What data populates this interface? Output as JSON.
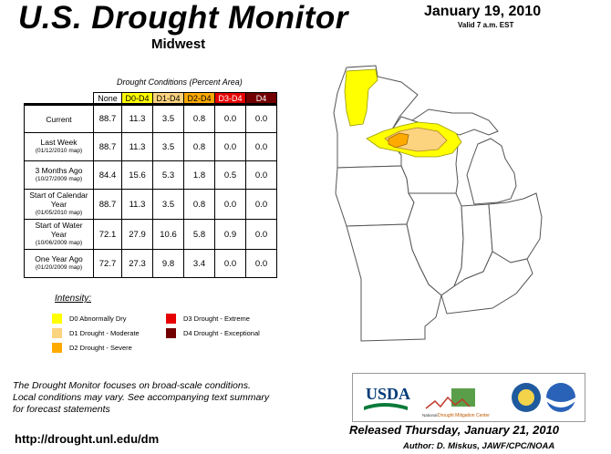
{
  "header": {
    "title": "U.S. Drought Monitor",
    "region": "Midwest",
    "date": "January 19, 2010",
    "valid": "Valid 7 a.m. EST"
  },
  "table": {
    "caption": "Drought Conditions (Percent Area)",
    "columns": [
      {
        "label": "None",
        "color": "#ffffff",
        "text_color": "#000000"
      },
      {
        "label": "D0-D4",
        "color": "#ffff00",
        "text_color": "#000000"
      },
      {
        "label": "D1-D4",
        "color": "#fcd37f",
        "text_color": "#000000"
      },
      {
        "label": "D2-D4",
        "color": "#ffaa00",
        "text_color": "#000000"
      },
      {
        "label": "D3-D4",
        "color": "#e60000",
        "text_color": "#ffffff"
      },
      {
        "label": "D4",
        "color": "#730000",
        "text_color": "#ffffff"
      }
    ],
    "rows": [
      {
        "label": "Current",
        "sub": "",
        "values": [
          "88.7",
          "11.3",
          "3.5",
          "0.8",
          "0.0",
          "0.0"
        ]
      },
      {
        "label": "Last Week",
        "sub": "(01/12/2010 map)",
        "values": [
          "88.7",
          "11.3",
          "3.5",
          "0.8",
          "0.0",
          "0.0"
        ]
      },
      {
        "label": "3 Months Ago",
        "sub": "(10/27/2009 map)",
        "values": [
          "84.4",
          "15.6",
          "5.3",
          "1.8",
          "0.5",
          "0.0"
        ]
      },
      {
        "label": "Start of Calendar Year",
        "sub": "(01/05/2010 map)",
        "values": [
          "88.7",
          "11.3",
          "3.5",
          "0.8",
          "0.0",
          "0.0"
        ]
      },
      {
        "label": "Start of Water Year",
        "sub": "(10/06/2009 map)",
        "values": [
          "72.1",
          "27.9",
          "10.6",
          "5.8",
          "0.9",
          "0.0"
        ]
      },
      {
        "label": "One Year Ago",
        "sub": "(01/20/2009 map)",
        "values": [
          "72.7",
          "27.3",
          "9.8",
          "3.4",
          "0.0",
          "0.0"
        ]
      }
    ]
  },
  "legend": {
    "title": "Intensity:",
    "items": [
      {
        "label": "D0 Abnormally Dry",
        "color": "#ffff00"
      },
      {
        "label": "D1 Drought - Moderate",
        "color": "#fcd37f"
      },
      {
        "label": "D2 Drought - Severe",
        "color": "#ffaa00"
      },
      {
        "label": "D3 Drought - Extreme",
        "color": "#e60000"
      },
      {
        "label": "D4 Drought - Exceptional",
        "color": "#730000"
      }
    ]
  },
  "footer": {
    "note_line1": "The Drought Monitor focuses on broad-scale conditions.",
    "note_line2": "Local conditions may vary. See accompanying text summary",
    "note_line3": "for forecast statements",
    "url": "http://drought.unl.edu/dm",
    "released": "Released Thursday, January 21, 2010",
    "author": "Author: D. Miskus, JAWF/CPC/NOAA"
  },
  "logos": {
    "usda": "USDA",
    "ndmc_prefix": "National",
    "ndmc_name": "Drought Mitigation Center"
  }
}
